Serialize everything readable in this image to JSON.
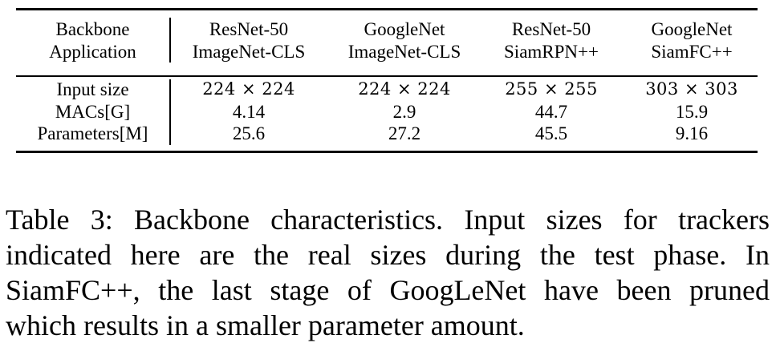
{
  "table": {
    "header": {
      "row_labels": [
        "Backbone",
        "Application"
      ],
      "columns": [
        {
          "backbone": "ResNet-50",
          "application": "ImageNet-CLS"
        },
        {
          "backbone": "GoogleNet",
          "application": "ImageNet-CLS"
        },
        {
          "backbone": "ResNet-50",
          "application": "SiamRPN++"
        },
        {
          "backbone": "GoogleNet",
          "application": "SiamFC++"
        }
      ]
    },
    "rows": [
      {
        "label": "Input size",
        "values": [
          "224 × 224",
          "224 × 224",
          "255 × 255",
          "303 × 303"
        ]
      },
      {
        "label": "MACs[G]",
        "values": [
          "4.14",
          "2.9",
          "44.7",
          "15.9"
        ]
      },
      {
        "label": "Parameters[M]",
        "values": [
          "25.6",
          "27.2",
          "45.5",
          "9.16"
        ]
      }
    ]
  },
  "caption": {
    "lines": [
      "Table 3: Backbone characteristics. Input sizes for trackers",
      "indicated here are the real sizes during the test phase. In",
      "SiamFC++, the last stage of GoogLeNet have been pruned",
      "which results in a smaller parameter amount."
    ]
  }
}
